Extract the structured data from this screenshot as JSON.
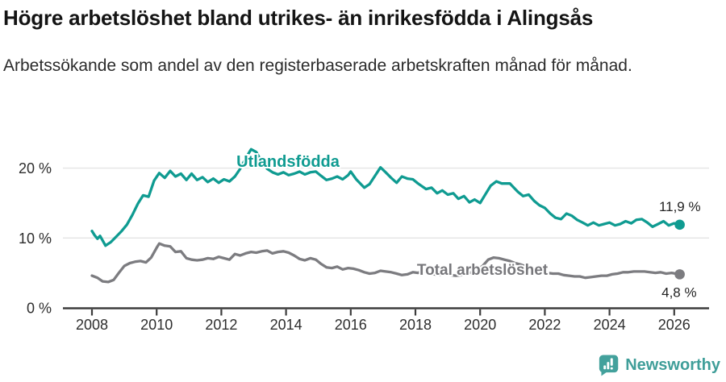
{
  "header": {
    "title": "Högre arbetslöshet bland utrikes- än inrikesfödda i Alingsås",
    "subtitle": "Arbetssökande som andel av den registerbaserade arbetskraften månad för månad."
  },
  "footer": {
    "brand": "Newsworthy",
    "brand_color": "#3f9e99"
  },
  "chart_data": {
    "type": "line",
    "title": "Högre arbetslöshet bland utrikes- än inrikesfödda i Alingsås",
    "subtitle": "Arbetssökande som andel av den registerbaserade arbetskraften månad för månad.",
    "unit": "%",
    "grid": true,
    "legend_position": "inline-labels",
    "x_axis": {
      "ticks": [
        2008,
        2010,
        2012,
        2014,
        2016,
        2018,
        2020,
        2022,
        2024,
        2026
      ],
      "range_years": [
        2007.1,
        2027.1
      ]
    },
    "y_axis": {
      "ticks": [
        0,
        10,
        20
      ],
      "tick_labels": [
        "0 %",
        "10 %",
        "20 %"
      ],
      "range": [
        0,
        23.3
      ]
    },
    "series": [
      {
        "name": "Utlandsfödda",
        "color": "#0f9b91",
        "label_color": "#0f9b91",
        "end_label": "11,9 %",
        "end_value": 11.9,
        "points": [
          [
            2008.0,
            11.0
          ],
          [
            2008.08,
            10.4
          ],
          [
            2008.17,
            9.9
          ],
          [
            2008.25,
            10.3
          ],
          [
            2008.42,
            8.9
          ],
          [
            2008.58,
            9.4
          ],
          [
            2008.75,
            10.2
          ],
          [
            2008.92,
            11.0
          ],
          [
            2009.08,
            11.9
          ],
          [
            2009.25,
            13.3
          ],
          [
            2009.42,
            14.9
          ],
          [
            2009.58,
            16.1
          ],
          [
            2009.75,
            15.9
          ],
          [
            2009.92,
            18.2
          ],
          [
            2010.08,
            19.3
          ],
          [
            2010.25,
            18.6
          ],
          [
            2010.42,
            19.6
          ],
          [
            2010.58,
            18.8
          ],
          [
            2010.75,
            19.2
          ],
          [
            2010.92,
            18.3
          ],
          [
            2011.08,
            19.2
          ],
          [
            2011.25,
            18.3
          ],
          [
            2011.42,
            18.7
          ],
          [
            2011.58,
            18.0
          ],
          [
            2011.75,
            18.5
          ],
          [
            2011.92,
            17.9
          ],
          [
            2012.08,
            18.4
          ],
          [
            2012.25,
            18.1
          ],
          [
            2012.42,
            18.8
          ],
          [
            2012.58,
            19.9
          ],
          [
            2012.75,
            21.4
          ],
          [
            2012.92,
            22.7
          ],
          [
            2013.08,
            22.3
          ],
          [
            2013.25,
            20.9
          ],
          [
            2013.42,
            19.9
          ],
          [
            2013.58,
            19.4
          ],
          [
            2013.75,
            19.1
          ],
          [
            2013.92,
            19.4
          ],
          [
            2014.08,
            19.0
          ],
          [
            2014.25,
            19.2
          ],
          [
            2014.42,
            19.5
          ],
          [
            2014.58,
            19.1
          ],
          [
            2014.75,
            19.4
          ],
          [
            2014.92,
            19.5
          ],
          [
            2015.08,
            18.9
          ],
          [
            2015.25,
            18.3
          ],
          [
            2015.42,
            18.5
          ],
          [
            2015.58,
            18.8
          ],
          [
            2015.75,
            18.4
          ],
          [
            2015.92,
            19.0
          ],
          [
            2016.0,
            19.5
          ],
          [
            2016.17,
            18.4
          ],
          [
            2016.42,
            17.2
          ],
          [
            2016.58,
            17.7
          ],
          [
            2016.75,
            18.9
          ],
          [
            2016.92,
            20.1
          ],
          [
            2017.08,
            19.4
          ],
          [
            2017.25,
            18.6
          ],
          [
            2017.42,
            17.9
          ],
          [
            2017.58,
            18.8
          ],
          [
            2017.75,
            18.5
          ],
          [
            2017.92,
            18.4
          ],
          [
            2018.08,
            17.8
          ],
          [
            2018.33,
            17.0
          ],
          [
            2018.5,
            17.2
          ],
          [
            2018.67,
            16.4
          ],
          [
            2018.83,
            16.8
          ],
          [
            2019.0,
            16.2
          ],
          [
            2019.17,
            16.4
          ],
          [
            2019.33,
            15.6
          ],
          [
            2019.5,
            16.0
          ],
          [
            2019.67,
            15.1
          ],
          [
            2019.83,
            15.5
          ],
          [
            2020.0,
            15.0
          ],
          [
            2020.17,
            16.3
          ],
          [
            2020.33,
            17.5
          ],
          [
            2020.5,
            18.1
          ],
          [
            2020.67,
            17.8
          ],
          [
            2020.92,
            17.8
          ],
          [
            2021.17,
            16.6
          ],
          [
            2021.33,
            16.0
          ],
          [
            2021.5,
            16.2
          ],
          [
            2021.67,
            15.3
          ],
          [
            2021.83,
            14.7
          ],
          [
            2022.0,
            14.3
          ],
          [
            2022.17,
            13.5
          ],
          [
            2022.33,
            12.9
          ],
          [
            2022.5,
            12.7
          ],
          [
            2022.67,
            13.5
          ],
          [
            2022.83,
            13.2
          ],
          [
            2023.0,
            12.6
          ],
          [
            2023.17,
            12.2
          ],
          [
            2023.33,
            11.8
          ],
          [
            2023.5,
            12.2
          ],
          [
            2023.67,
            11.8
          ],
          [
            2023.83,
            12.0
          ],
          [
            2024.0,
            12.2
          ],
          [
            2024.17,
            11.8
          ],
          [
            2024.33,
            12.0
          ],
          [
            2024.5,
            12.4
          ],
          [
            2024.67,
            12.1
          ],
          [
            2024.83,
            12.6
          ],
          [
            2025.0,
            12.7
          ],
          [
            2025.17,
            12.2
          ],
          [
            2025.33,
            11.6
          ],
          [
            2025.5,
            12.0
          ],
          [
            2025.67,
            12.4
          ],
          [
            2025.83,
            11.8
          ],
          [
            2026.0,
            12.1
          ],
          [
            2026.17,
            11.9
          ]
        ]
      },
      {
        "name": "Total arbetslöshet",
        "color": "#7c7c80",
        "label_color": "#77777b",
        "end_label": "4,8 %",
        "end_value": 4.8,
        "points": [
          [
            2008.0,
            4.6
          ],
          [
            2008.17,
            4.3
          ],
          [
            2008.33,
            3.8
          ],
          [
            2008.5,
            3.7
          ],
          [
            2008.67,
            4.0
          ],
          [
            2008.83,
            5.0
          ],
          [
            2009.0,
            6.0
          ],
          [
            2009.17,
            6.4
          ],
          [
            2009.33,
            6.6
          ],
          [
            2009.5,
            6.7
          ],
          [
            2009.67,
            6.5
          ],
          [
            2009.83,
            7.2
          ],
          [
            2010.0,
            8.6
          ],
          [
            2010.08,
            9.2
          ],
          [
            2010.25,
            8.9
          ],
          [
            2010.42,
            8.8
          ],
          [
            2010.58,
            8.0
          ],
          [
            2010.75,
            8.1
          ],
          [
            2010.92,
            7.1
          ],
          [
            2011.08,
            6.9
          ],
          [
            2011.25,
            6.8
          ],
          [
            2011.42,
            6.9
          ],
          [
            2011.58,
            7.1
          ],
          [
            2011.75,
            7.0
          ],
          [
            2011.92,
            7.3
          ],
          [
            2012.08,
            7.1
          ],
          [
            2012.25,
            6.9
          ],
          [
            2012.42,
            7.7
          ],
          [
            2012.58,
            7.5
          ],
          [
            2012.75,
            7.8
          ],
          [
            2012.92,
            8.0
          ],
          [
            2013.08,
            7.9
          ],
          [
            2013.25,
            8.1
          ],
          [
            2013.42,
            8.2
          ],
          [
            2013.58,
            7.8
          ],
          [
            2013.75,
            8.0
          ],
          [
            2013.92,
            8.1
          ],
          [
            2014.08,
            7.9
          ],
          [
            2014.25,
            7.5
          ],
          [
            2014.42,
            7.0
          ],
          [
            2014.58,
            6.8
          ],
          [
            2014.75,
            7.1
          ],
          [
            2014.92,
            6.9
          ],
          [
            2015.08,
            6.3
          ],
          [
            2015.25,
            5.8
          ],
          [
            2015.42,
            5.7
          ],
          [
            2015.58,
            5.9
          ],
          [
            2015.75,
            5.5
          ],
          [
            2015.92,
            5.7
          ],
          [
            2016.08,
            5.6
          ],
          [
            2016.25,
            5.4
          ],
          [
            2016.42,
            5.1
          ],
          [
            2016.58,
            4.9
          ],
          [
            2016.75,
            5.0
          ],
          [
            2016.92,
            5.3
          ],
          [
            2017.08,
            5.2
          ],
          [
            2017.25,
            5.1
          ],
          [
            2017.42,
            4.9
          ],
          [
            2017.58,
            4.7
          ],
          [
            2017.75,
            4.8
          ],
          [
            2017.92,
            5.1
          ],
          [
            2018.08,
            5.0
          ],
          [
            2018.25,
            5.3
          ],
          [
            2018.42,
            5.0
          ],
          [
            2018.58,
            4.8
          ],
          [
            2018.75,
            4.7
          ],
          [
            2018.92,
            4.9
          ],
          [
            2019.08,
            4.7
          ],
          [
            2019.25,
            4.6
          ],
          [
            2019.42,
            4.7
          ],
          [
            2019.58,
            4.9
          ],
          [
            2019.75,
            5.1
          ],
          [
            2019.92,
            5.5
          ],
          [
            2020.08,
            6.0
          ],
          [
            2020.25,
            6.9
          ],
          [
            2020.42,
            7.2
          ],
          [
            2020.58,
            7.1
          ],
          [
            2020.75,
            6.9
          ],
          [
            2020.92,
            6.7
          ],
          [
            2021.08,
            6.4
          ],
          [
            2021.25,
            6.2
          ],
          [
            2021.42,
            5.9
          ],
          [
            2021.58,
            5.7
          ],
          [
            2021.75,
            5.4
          ],
          [
            2021.92,
            5.2
          ],
          [
            2022.08,
            5.0
          ],
          [
            2022.25,
            4.9
          ],
          [
            2022.42,
            4.9
          ],
          [
            2022.58,
            4.7
          ],
          [
            2022.75,
            4.6
          ],
          [
            2022.92,
            4.5
          ],
          [
            2023.08,
            4.5
          ],
          [
            2023.25,
            4.3
          ],
          [
            2023.42,
            4.4
          ],
          [
            2023.58,
            4.5
          ],
          [
            2023.75,
            4.6
          ],
          [
            2023.92,
            4.6
          ],
          [
            2024.08,
            4.8
          ],
          [
            2024.25,
            4.9
          ],
          [
            2024.42,
            5.1
          ],
          [
            2024.58,
            5.1
          ],
          [
            2024.75,
            5.2
          ],
          [
            2024.92,
            5.2
          ],
          [
            2025.08,
            5.2
          ],
          [
            2025.25,
            5.1
          ],
          [
            2025.42,
            5.0
          ],
          [
            2025.58,
            5.1
          ],
          [
            2025.75,
            4.9
          ],
          [
            2025.92,
            5.0
          ],
          [
            2026.17,
            4.8
          ]
        ]
      }
    ]
  }
}
